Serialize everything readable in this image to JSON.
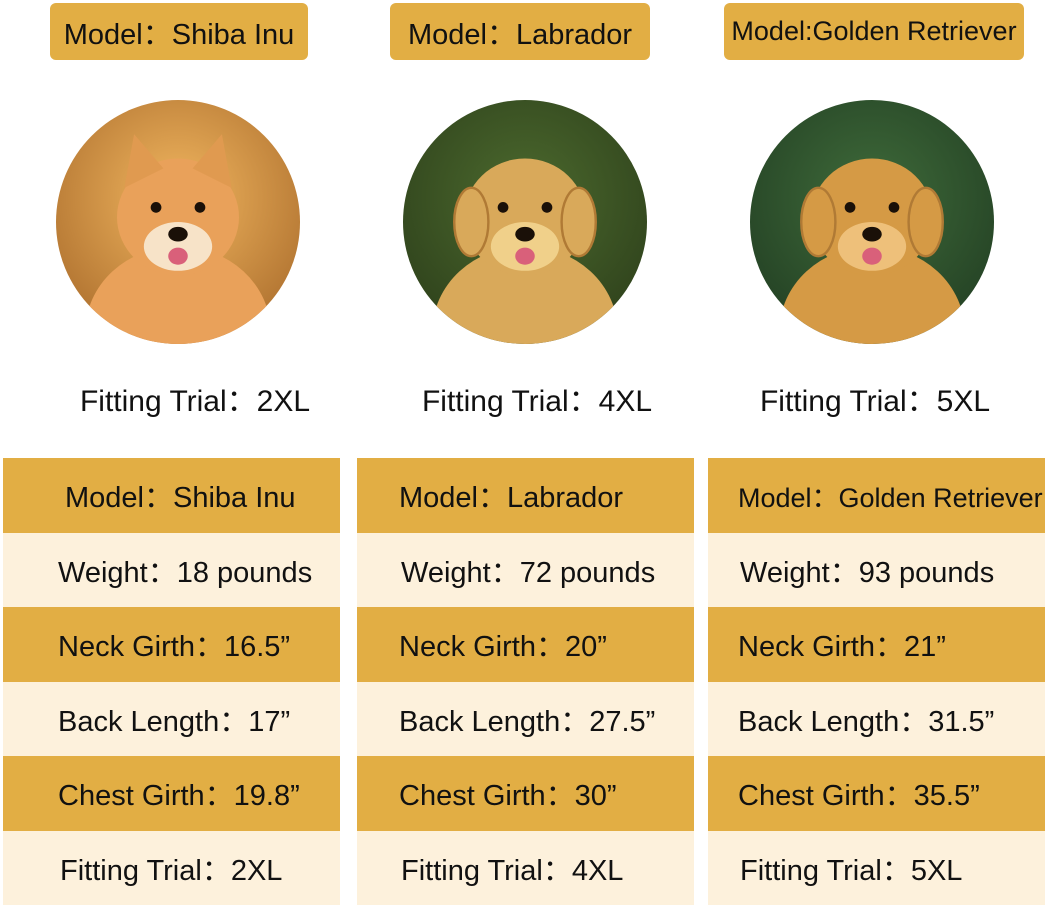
{
  "colors": {
    "accent": "#E2AE44",
    "row_light": "#FDF1DC"
  },
  "dogs": [
    {
      "tag": "Model：Shiba Inu",
      "photo": "shiba-inu-photo",
      "fitting": "Fitting Trial：2XL",
      "rows": [
        "Model：Shiba Inu",
        "Weight：18 pounds",
        "Neck Girth：16.5”",
        "Back Length：17”",
        "Chest Girth：19.8”",
        "Fitting Trial：2XL"
      ]
    },
    {
      "tag": "Model：Labrador",
      "photo": "labrador-photo",
      "fitting": "Fitting Trial：4XL",
      "rows": [
        "Model：Labrador",
        "Weight：72 pounds",
        "Neck Girth：20”",
        "Back Length：27.5”",
        "Chest Girth：30”",
        "Fitting Trial：4XL"
      ]
    },
    {
      "tag": "Model:Golden Retriever",
      "photo": "golden-retriever-photo",
      "fitting": "Fitting Trial：5XL",
      "rows": [
        "Model：Golden Retriever",
        "Weight：93 pounds",
        "Neck Girth：21”",
        "Back Length：31.5”",
        "Chest Girth：35.5”",
        "Fitting Trial：5XL"
      ]
    }
  ]
}
